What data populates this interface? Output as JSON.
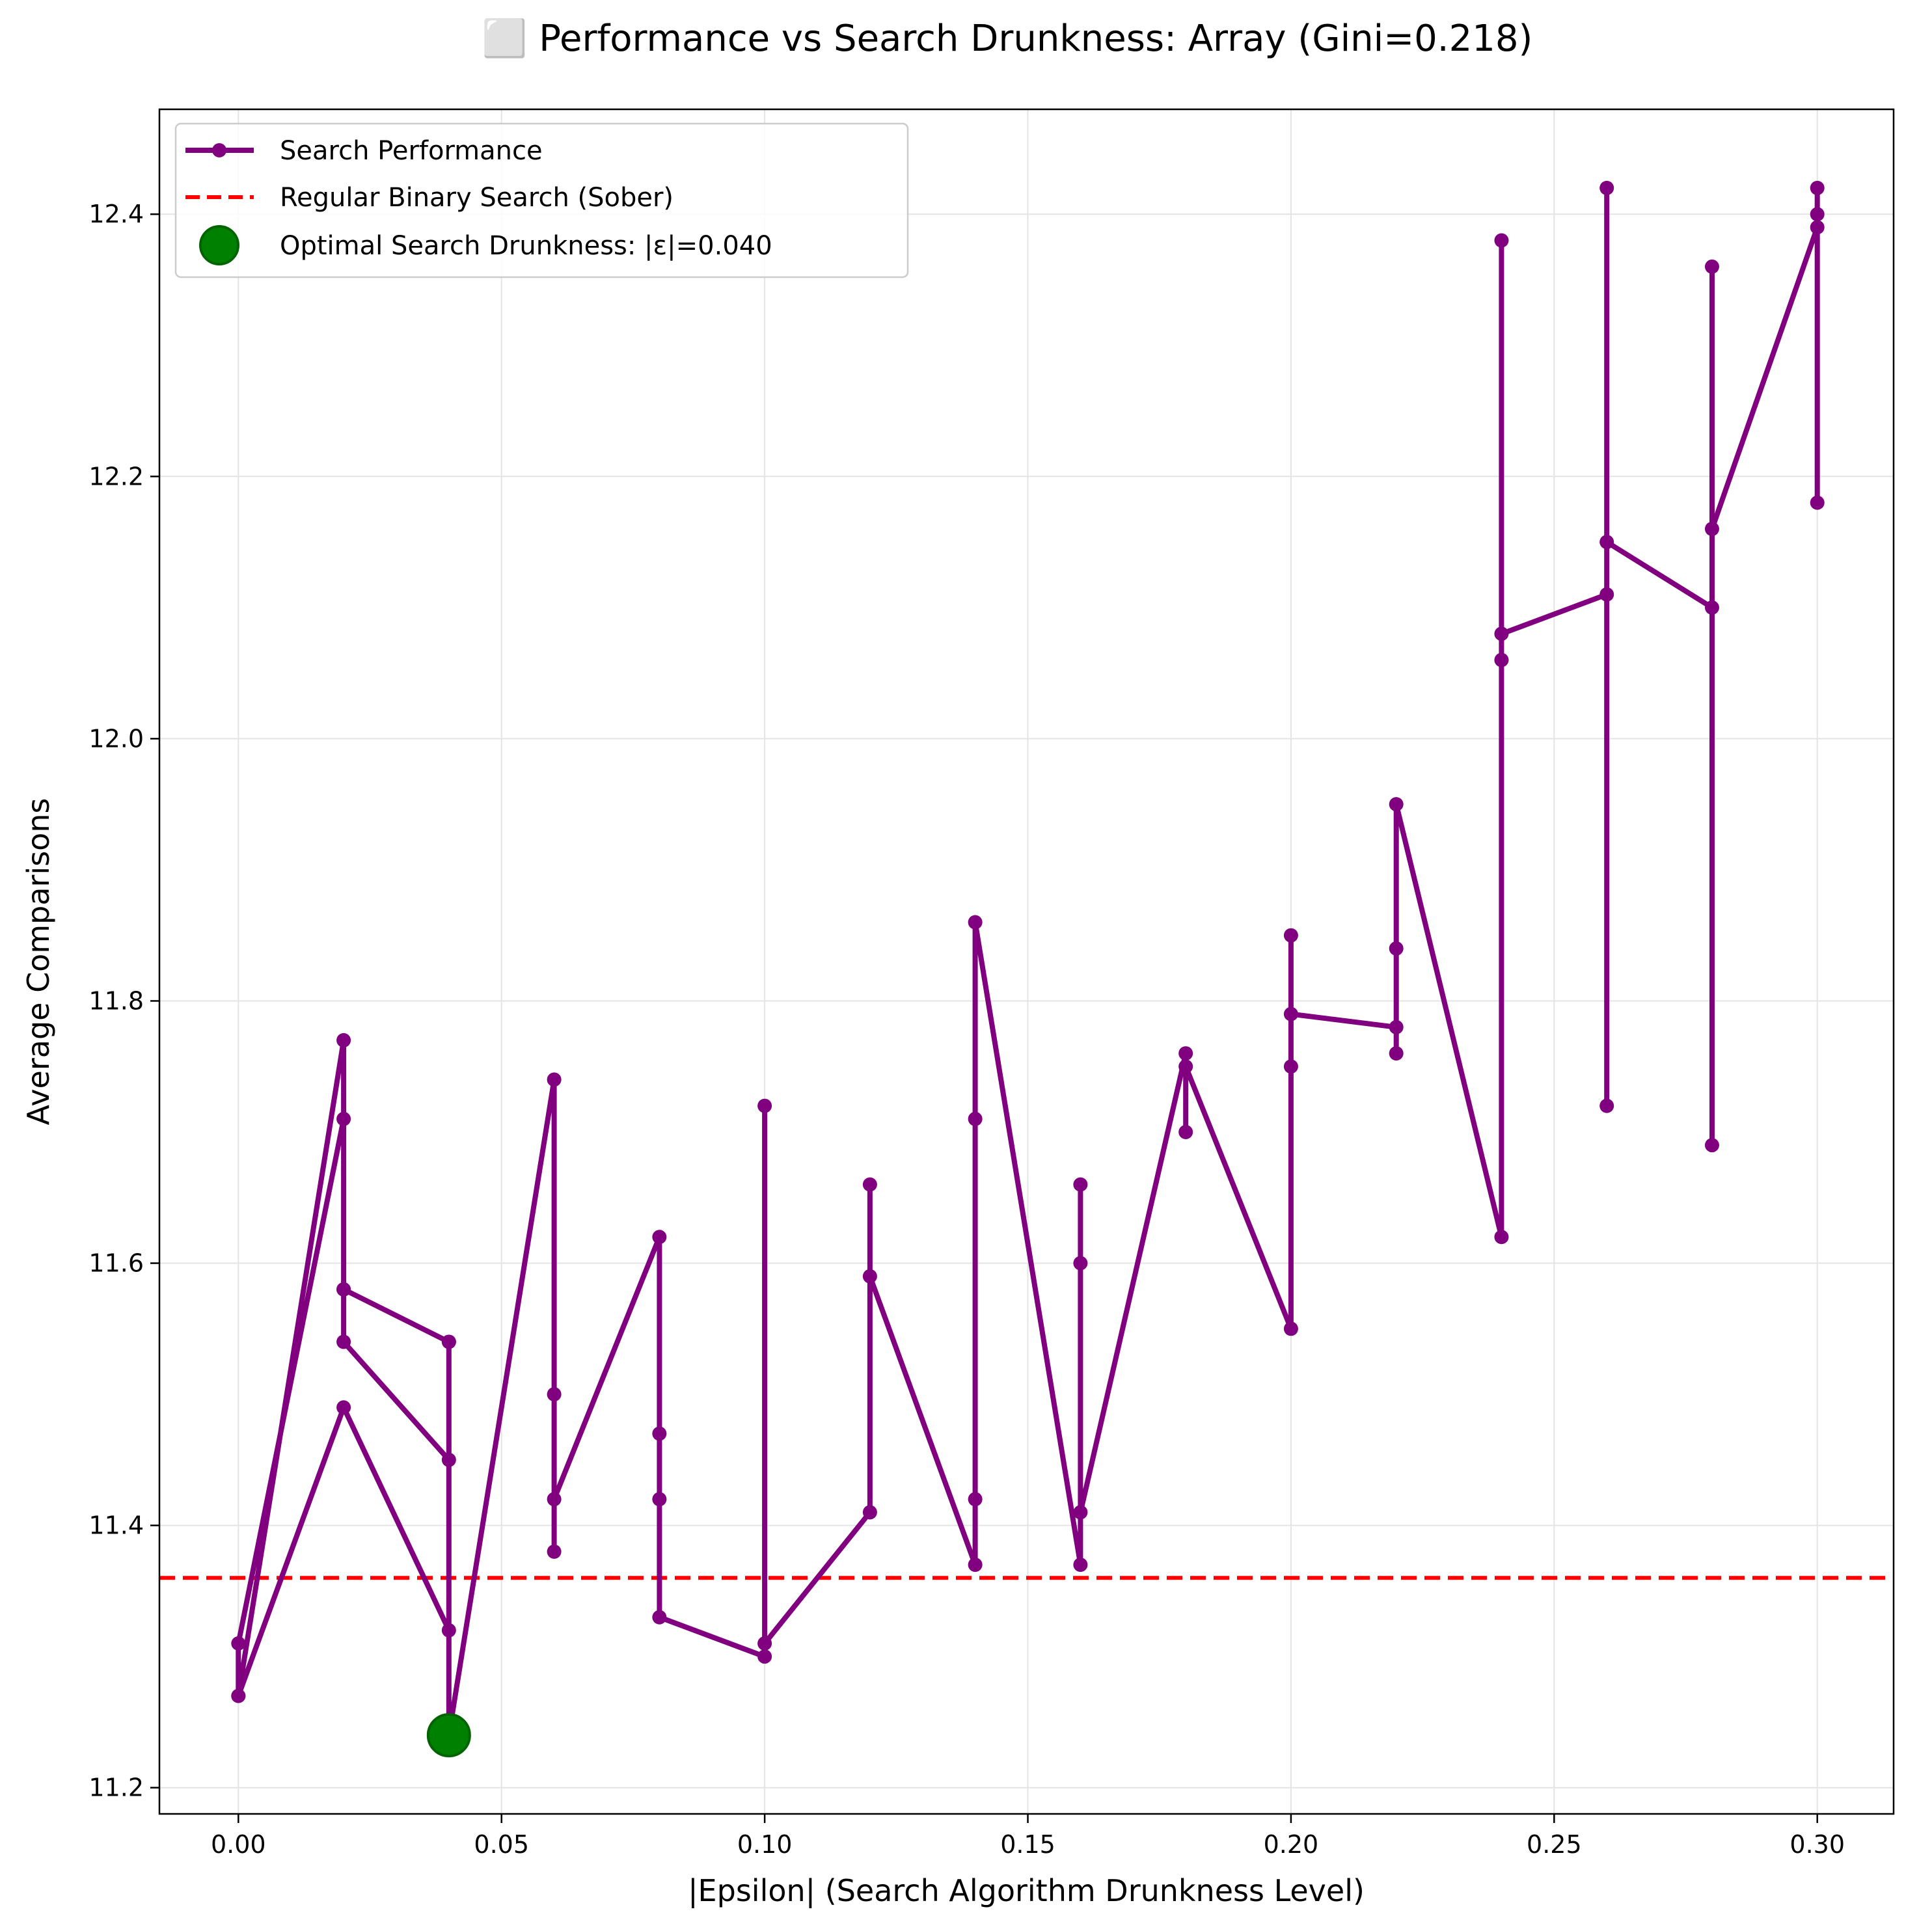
{
  "chart_data": {
    "type": "line",
    "title": "⬜ Performance vs Search Drunkness: Array (Gini=0.218)",
    "xlabel": "|Epsilon| (Search Algorithm Drunkness Level)",
    "ylabel": "Average Comparisons",
    "xlim": [
      -0.015,
      0.3145
    ],
    "ylim": [
      11.18,
      12.48
    ],
    "xticks": [
      0.0,
      0.05,
      0.1,
      0.15,
      0.2,
      0.25,
      0.3
    ],
    "xtick_labels": [
      "0.00",
      "0.05",
      "0.10",
      "0.15",
      "0.20",
      "0.25",
      "0.30"
    ],
    "yticks": [
      11.2,
      11.4,
      11.6,
      11.8,
      12.0,
      12.2,
      12.4
    ],
    "ytick_labels": [
      "11.2",
      "11.4",
      "11.6",
      "11.8",
      "12.0",
      "12.2",
      "12.4"
    ],
    "grid": true,
    "legend_position": "top-left",
    "series": [
      {
        "name": "Search Performance",
        "color": "#800080",
        "marker": "circle",
        "x": [
          0.0,
          0.0,
          0.02,
          0.02,
          0.02,
          0.04,
          0.04,
          0.04,
          0.02,
          0.0,
          0.02,
          0.02,
          0.04,
          0.04,
          0.06,
          0.06,
          0.06,
          0.06,
          0.08,
          0.08,
          0.08,
          0.08,
          0.1,
          0.1,
          0.1,
          0.12,
          0.12,
          0.12,
          0.14,
          0.14,
          0.14,
          0.14,
          0.16,
          0.16,
          0.16,
          0.16,
          0.18,
          0.18,
          0.18,
          0.2,
          0.2,
          0.2,
          0.2,
          0.22,
          0.22,
          0.22,
          0.22,
          0.24,
          0.24,
          0.24,
          0.24,
          0.26,
          0.26,
          0.26,
          0.26,
          0.28,
          0.28,
          0.28,
          0.28,
          0.3,
          0.3,
          0.3,
          0.3
        ],
        "y": [
          11.27,
          11.31,
          11.71,
          11.58,
          11.54,
          11.45,
          11.54,
          11.32,
          11.49,
          11.27,
          11.77,
          11.58,
          11.54,
          11.24,
          11.74,
          11.5,
          11.38,
          11.42,
          11.62,
          11.42,
          11.47,
          11.33,
          11.3,
          11.72,
          11.31,
          11.41,
          11.66,
          11.59,
          11.37,
          11.71,
          11.42,
          11.86,
          11.37,
          11.6,
          11.66,
          11.41,
          11.76,
          11.7,
          11.75,
          11.55,
          11.85,
          11.75,
          11.79,
          11.78,
          11.84,
          11.76,
          11.95,
          11.62,
          12.06,
          12.38,
          12.08,
          12.11,
          11.72,
          12.42,
          12.15,
          12.1,
          12.36,
          11.69,
          12.16,
          12.39,
          12.42,
          12.18,
          12.4
        ]
      },
      {
        "name": "Regular Binary Search (Sober)",
        "color": "#ff0000",
        "style": "dashed",
        "y": 11.36
      },
      {
        "name": "Optimal Search Drunkness: |ε|=0.040",
        "color": "#008000",
        "marker": "large-circle",
        "x": [
          0.04
        ],
        "y": [
          11.24
        ]
      }
    ]
  }
}
